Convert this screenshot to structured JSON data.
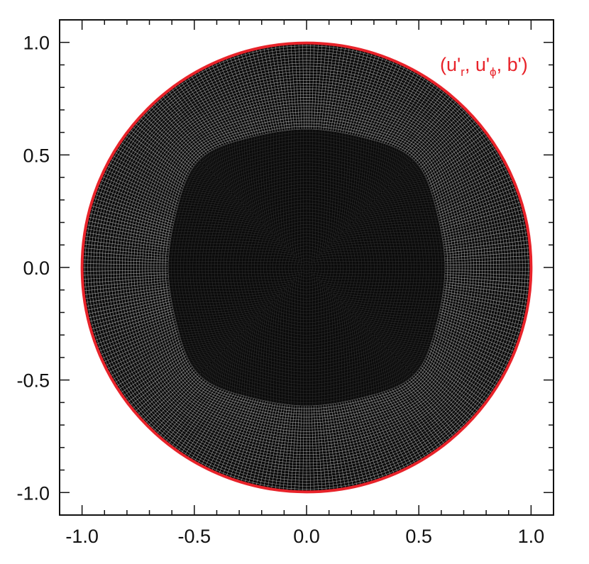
{
  "figure": {
    "annotation": {
      "prefix": "(u'",
      "sub1": "r",
      "mid": ", u'",
      "sub2": "ϕ",
      "suffix": ", b')"
    },
    "colors": {
      "boundary": "#e8232a",
      "mesh_background": "#0b0b0b",
      "mesh_lines": "#cfcfcf",
      "axes": "#111111"
    }
  },
  "chart_data": {
    "type": "mesh",
    "xlim": [
      -1.1,
      1.1
    ],
    "ylim": [
      -1.1,
      1.1
    ],
    "x_ticks": [
      -1.0,
      -0.5,
      0.0,
      0.5,
      1.0
    ],
    "y_ticks": [
      1.0,
      0.5,
      0.0,
      -0.5,
      -1.0
    ],
    "x_tick_labels": [
      "-1.0",
      "-0.5",
      "0.0",
      "0.5",
      "1.0"
    ],
    "y_tick_labels": [
      "1.0",
      "0.5",
      "0.0",
      "-0.5",
      "-1.0"
    ],
    "grid": false,
    "domain": {
      "outer_radius": 1.0,
      "inner_square_halfwidth": 0.55,
      "inner_square_bulge": 0.2,
      "annulus_radial_lines": 30,
      "annulus_angular_lines": 360,
      "core_lines": 90
    }
  }
}
